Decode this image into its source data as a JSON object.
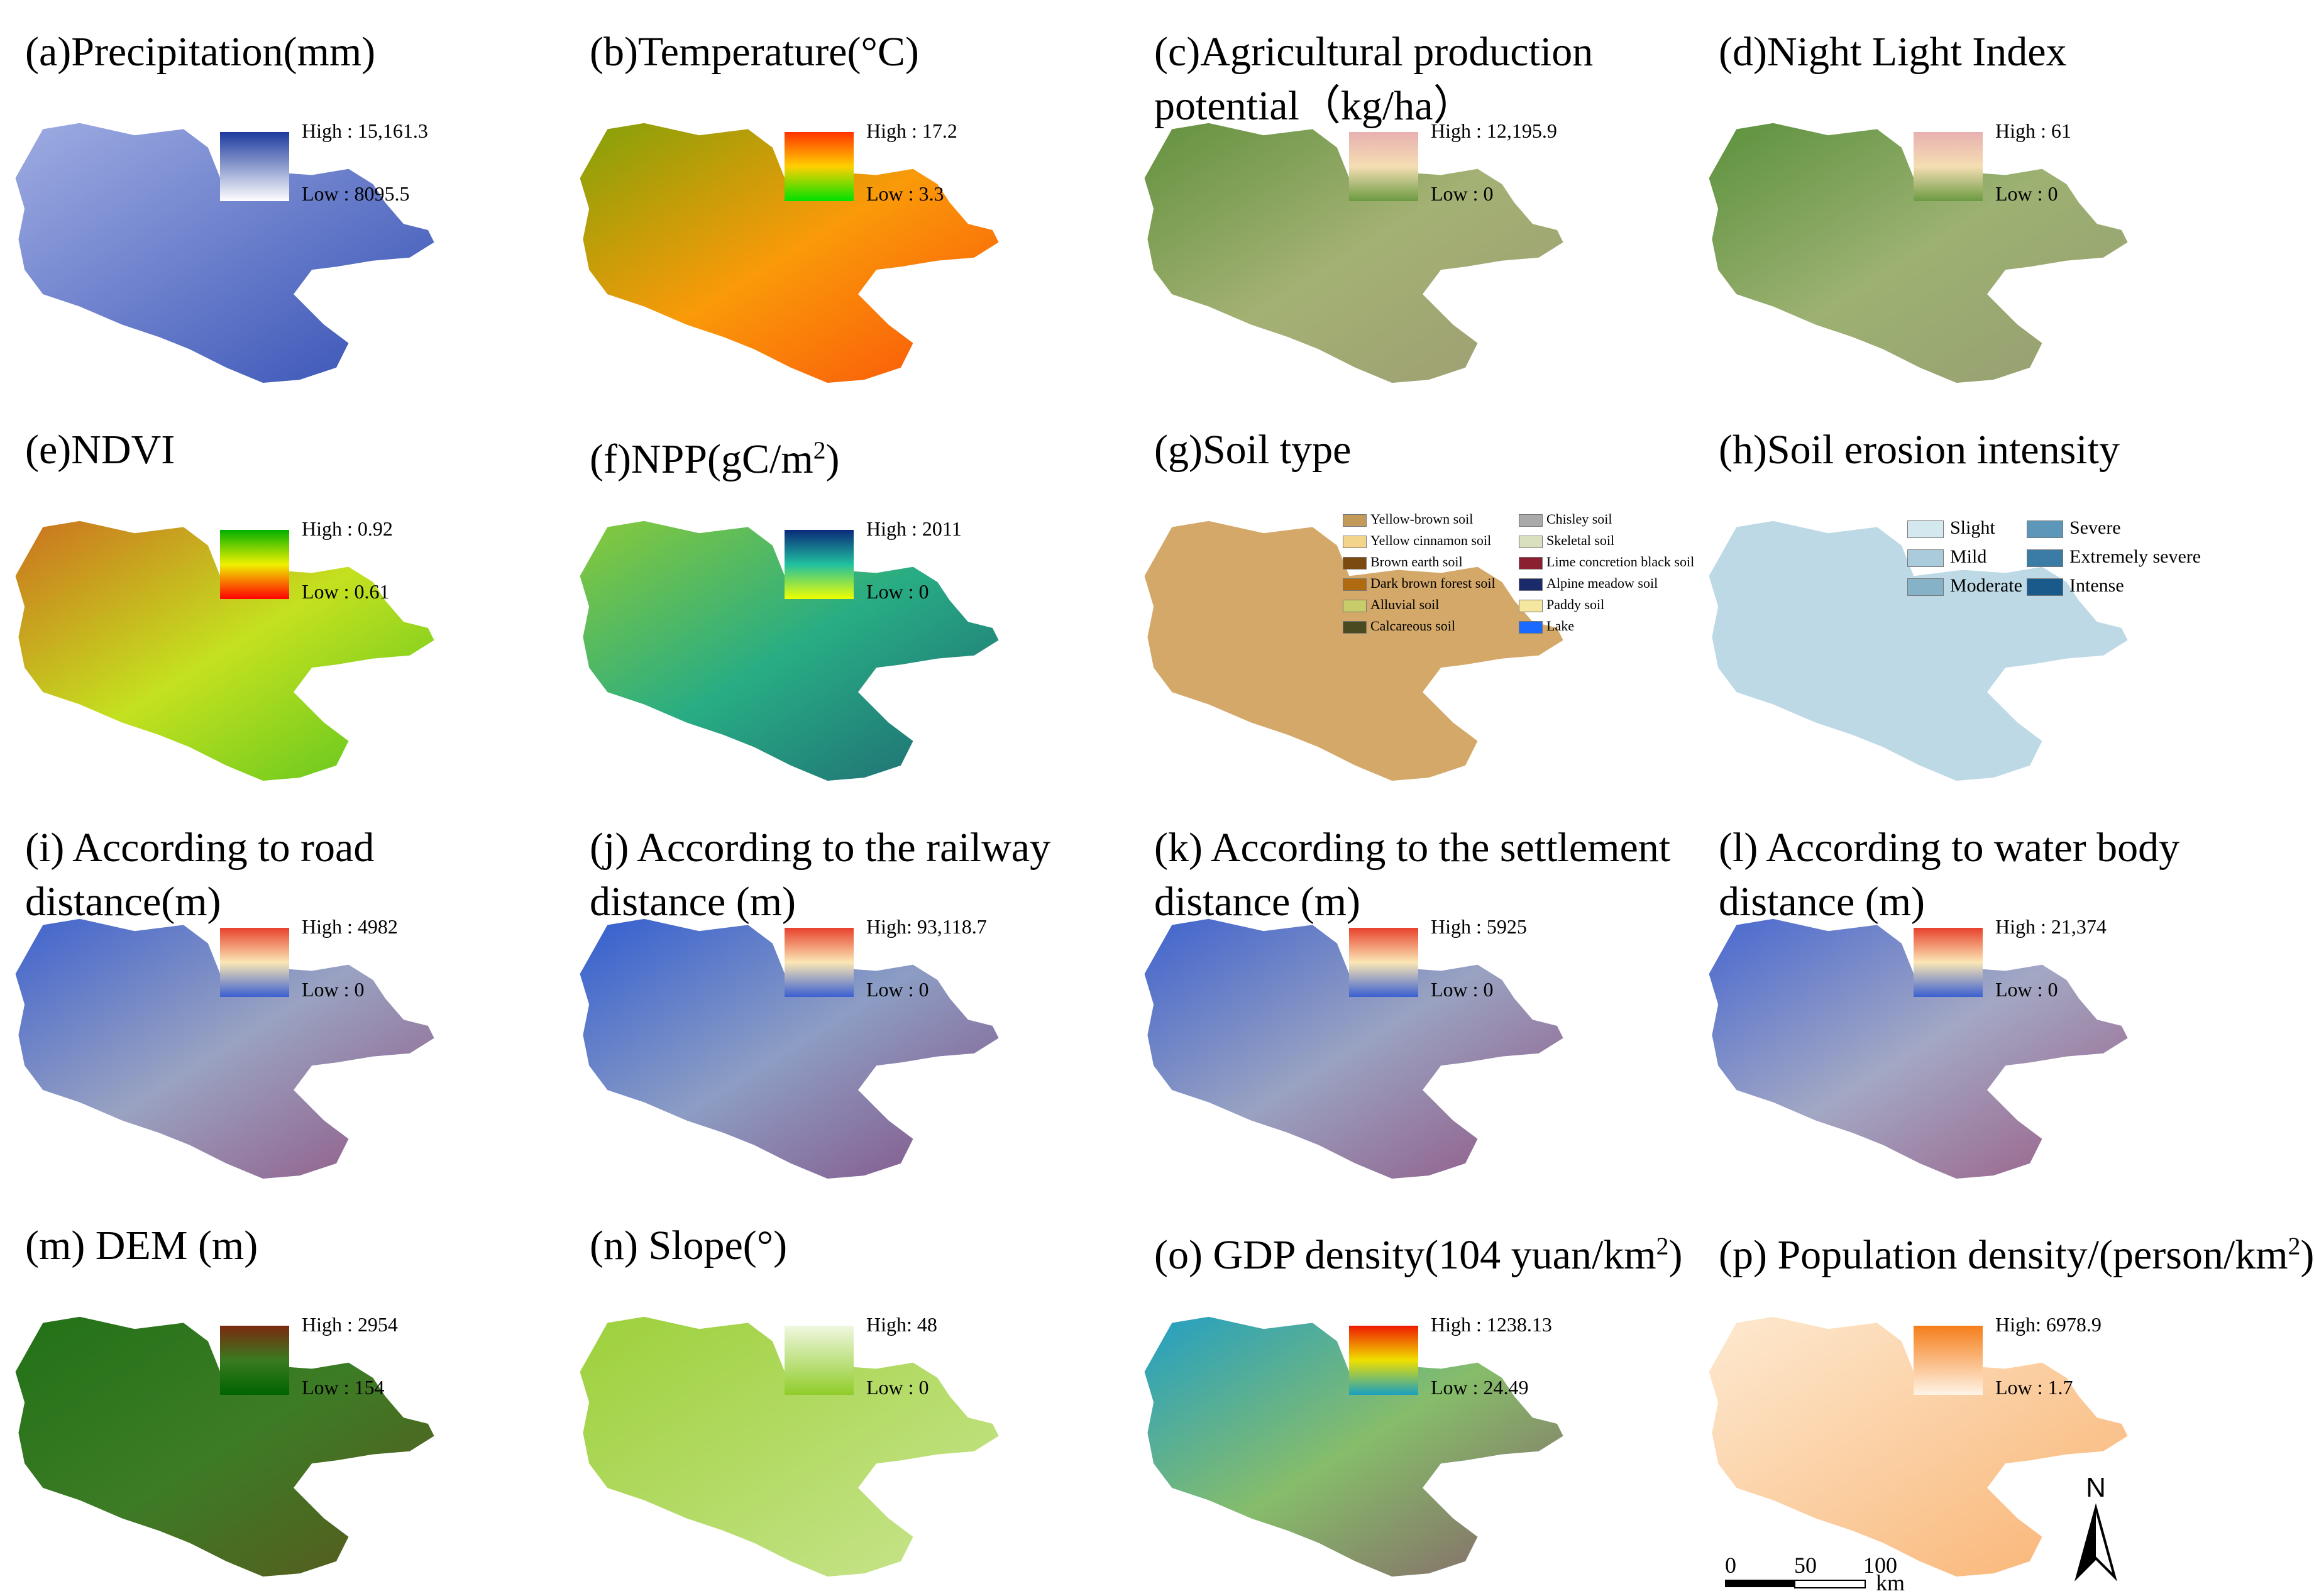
{
  "panels": [
    {
      "id": "a",
      "title": "(a)Precipitation(mm)",
      "high": "High : 15,161.3",
      "low": "Low : 8095.5",
      "colors": [
        "#1c3a9e",
        "#ffffff"
      ],
      "fill": "#4a63c8"
    },
    {
      "id": "b",
      "title": "(b)Temperature(°C)",
      "high": "High : 17.2",
      "low": "Low : 3.3",
      "colors": [
        "#ff3200",
        "#ffd000",
        "#00e000"
      ],
      "fill": "#f56a10"
    },
    {
      "id": "c",
      "title_line1": "(c)Agricultural production",
      "title_line2": "potential（kg/ha）",
      "high": "High : 12,195.9",
      "low": "Low : 0",
      "colors": [
        "#e8b0b0",
        "#f5deb3",
        "#6a9a40"
      ],
      "fill": "#5c8a3c"
    },
    {
      "id": "d",
      "title": "(d)Night Light Index",
      "high": "High : 61",
      "low": "Low : 0",
      "colors": [
        "#e8b0b0",
        "#f5deb3",
        "#6a9a40"
      ],
      "fill": "#4f8a3a"
    },
    {
      "id": "e",
      "title": "(e)NDVI",
      "high": "High : 0.92",
      "low": "Low : 0.61",
      "colors": [
        "#00b000",
        "#f0f000",
        "#ff0000"
      ],
      "fill": "#9ed43a"
    },
    {
      "id": "f",
      "title": "(f)NPP(gC/m",
      "title_sup": "2",
      "title_end": ")",
      "high": "High : 2011",
      "low": "Low : 0",
      "colors": [
        "#0a2a7a",
        "#20c0a0",
        "#f0ff00"
      ],
      "fill": "#2f9b6b"
    },
    {
      "id": "g",
      "title": "(g)Soil type",
      "fill": "#d4a868"
    },
    {
      "id": "h",
      "title": "(h)Soil erosion intensity",
      "fill": "#bdd9e6"
    },
    {
      "id": "i",
      "title_line1": "(i) According to road",
      "title_line2": "distance(m)",
      "high": "High : 4982",
      "low": "Low : 0",
      "colors": [
        "#e8412c",
        "#fbe7b5",
        "#3a5fd0"
      ],
      "fill": "#4466cc"
    },
    {
      "id": "j",
      "title_line1": "(j) According to the railway",
      "title_line2": "distance (m)",
      "high": "High: 93,118.7",
      "low": "Low : 0",
      "colors": [
        "#e8412c",
        "#fbe7b5",
        "#3a5fd0"
      ],
      "fill": "#2c5cd0"
    },
    {
      "id": "k",
      "title_line1": "(k) According to the settlement",
      "title_line2": "distance (m)",
      "high": "High : 5925",
      "low": "Low : 0",
      "colors": [
        "#e8412c",
        "#fbe7b5",
        "#3a5fd0"
      ],
      "fill": "#4466cc"
    },
    {
      "id": "l",
      "title_line1": "(l) According to water body",
      "title_line2": "distance (m)",
      "high": "High : 21,374",
      "low": "Low : 0",
      "colors": [
        "#e8412c",
        "#fbe7b5",
        "#3a5fd0"
      ],
      "fill": "#5570d0"
    },
    {
      "id": "m",
      "title": "(m) DEM (m)",
      "high": "High : 2954",
      "low": "Low : 154",
      "colors": [
        "#7a2a0e",
        "#3a7a20",
        "#006400"
      ],
      "fill": "#3f7d2a"
    },
    {
      "id": "n",
      "title": "(n) Slope(°)",
      "high": "High: 48",
      "low": "Low : 0",
      "colors": [
        "#f0f8e0",
        "#90cc2a"
      ],
      "fill": "#a8d44a"
    },
    {
      "id": "o",
      "title": "(o) GDP density(104 yuan/km",
      "title_sup": "2",
      "title_end": ")",
      "high": "High : 1238.13",
      "low": "Low : 24.49",
      "colors": [
        "#ee1a00",
        "#f0e000",
        "#1aa0c0"
      ],
      "fill": "#2a9ec8"
    },
    {
      "id": "p",
      "title": "(p) Population density/(person/km",
      "title_sup": "2",
      "title_end": ")",
      "high": "High: 6978.9",
      "low": "Low : 1.7",
      "colors": [
        "#f57e1a",
        "#fff4e6"
      ],
      "fill": "#fce0bd"
    }
  ],
  "soil_legend": [
    {
      "label": "Yellow-brown soil",
      "color": "#c49a5a"
    },
    {
      "label": "Yellow cinnamon soil",
      "color": "#f3d48a"
    },
    {
      "label": "Brown earth soil",
      "color": "#7a4a10"
    },
    {
      "label": "Dark brown forest soil",
      "color": "#b06a10"
    },
    {
      "label": "Alluvial soil",
      "color": "#c8cc6a"
    },
    {
      "label": "Calcareous soil",
      "color": "#4a4a20"
    },
    {
      "label": "Chisley soil",
      "color": "#aaaaaa"
    },
    {
      "label": "Skeletal soil",
      "color": "#d8e0c0"
    },
    {
      "label": "Lime concretion black soil",
      "color": "#8a2030"
    },
    {
      "label": "Alpine meadow soil",
      "color": "#1a2a6a"
    },
    {
      "label": "Paddy soil",
      "color": "#f5e6a0"
    },
    {
      "label": "Lake",
      "color": "#1a6aff"
    }
  ],
  "erosion_legend": [
    {
      "label": "Slight",
      "color": "#d4e8ef"
    },
    {
      "label": "Mild",
      "color": "#a9cbdb"
    },
    {
      "label": "Moderate",
      "color": "#86b2c8"
    },
    {
      "label": "Severe",
      "color": "#5c96b8"
    },
    {
      "label": "Extremely severe",
      "color": "#3a7ca6"
    },
    {
      "label": "Intense",
      "color": "#1a5a8a"
    }
  ],
  "scale_bar": {
    "ticks": [
      "0",
      "50",
      "100"
    ],
    "unit": "km"
  },
  "north_arrow": {
    "label": "N"
  }
}
